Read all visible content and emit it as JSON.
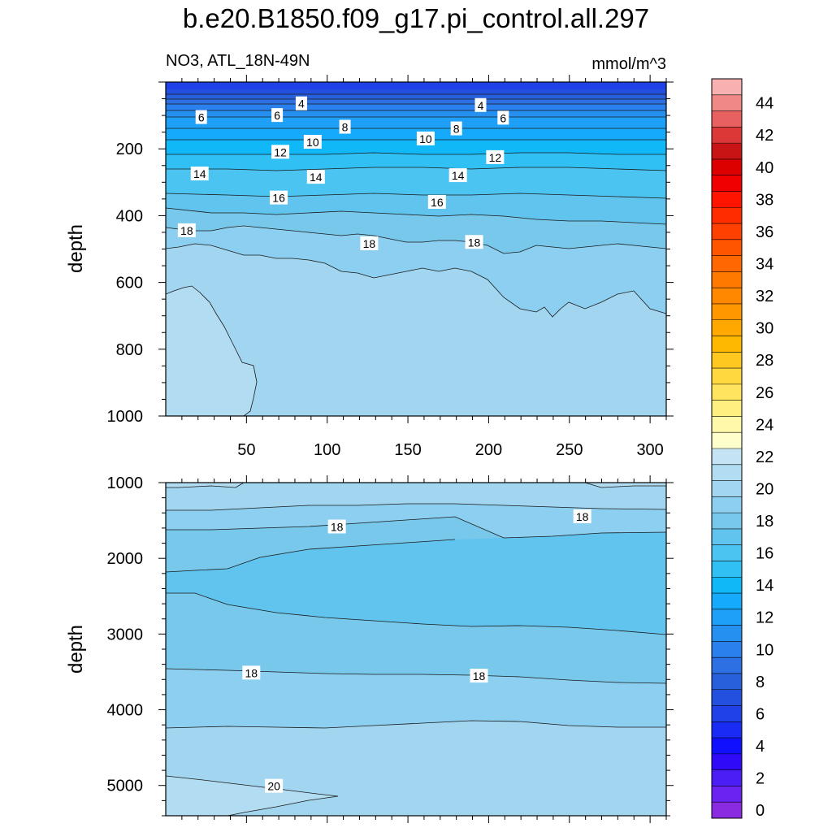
{
  "chart_data": {
    "type": "contour",
    "title": "b.e20.B1850.f09_g17.pi_control.all.297",
    "variable_label": "NO3, ATL_18N-49N",
    "units": "mmol/m^3",
    "panels": [
      {
        "name": "upper",
        "ylabel": "depth",
        "xlim": [
          0,
          310
        ],
        "ylim": [
          0,
          1000
        ],
        "x_ticks": [
          "50",
          "100",
          "150",
          "200",
          "250",
          "300"
        ],
        "y_ticks": [
          "200",
          "400",
          "600",
          "800",
          "1000"
        ],
        "contour_labels": [
          {
            "text": "4",
            "x": 84,
            "y": 65
          },
          {
            "text": "4",
            "x": 195,
            "y": 70
          },
          {
            "text": "6",
            "x": 22,
            "y": 106
          },
          {
            "text": "6",
            "x": 69,
            "y": 100
          },
          {
            "text": "6",
            "x": 209,
            "y": 108
          },
          {
            "text": "8",
            "x": 111,
            "y": 135
          },
          {
            "text": "8",
            "x": 180,
            "y": 140
          },
          {
            "text": "10",
            "x": 91,
            "y": 180
          },
          {
            "text": "10",
            "x": 161,
            "y": 170
          },
          {
            "text": "12",
            "x": 71,
            "y": 210
          },
          {
            "text": "12",
            "x": 204,
            "y": 226
          },
          {
            "text": "14",
            "x": 21,
            "y": 275
          },
          {
            "text": "14",
            "x": 93,
            "y": 285
          },
          {
            "text": "14",
            "x": 181,
            "y": 280
          },
          {
            "text": "16",
            "x": 70,
            "y": 347
          },
          {
            "text": "16",
            "x": 168,
            "y": 360
          },
          {
            "text": "18",
            "x": 13,
            "y": 445
          },
          {
            "text": "18",
            "x": 126,
            "y": 484
          },
          {
            "text": "18",
            "x": 191,
            "y": 480
          }
        ]
      },
      {
        "name": "lower",
        "ylabel": "depth",
        "xlim": [
          0,
          310
        ],
        "ylim": [
          1000,
          5400
        ],
        "y_ticks": [
          "1000",
          "2000",
          "3000",
          "4000",
          "5000"
        ],
        "contour_labels": [
          {
            "text": "18",
            "x": 106,
            "y": 1585
          },
          {
            "text": "18",
            "x": 258,
            "y": 1450
          },
          {
            "text": "18",
            "x": 53,
            "y": 3515
          },
          {
            "text": "18",
            "x": 194,
            "y": 3555
          },
          {
            "text": "20",
            "x": 67,
            "y": 5010
          }
        ]
      }
    ],
    "colorbar": {
      "tick_labels": [
        "0",
        "2",
        "4",
        "6",
        "8",
        "10",
        "12",
        "14",
        "16",
        "18",
        "20",
        "22",
        "24",
        "26",
        "28",
        "30",
        "32",
        "34",
        "36",
        "38",
        "40",
        "42",
        "44"
      ],
      "colors": [
        "#8a2be2",
        "#6a23f0",
        "#4b1ef6",
        "#2f0af8",
        "#1010ff",
        "#1a2cf4",
        "#2040e8",
        "#2450e0",
        "#2860dc",
        "#2c70e4",
        "#2a80ec",
        "#2690f0",
        "#1ea0f8",
        "#16aafc",
        "#10b8f8",
        "#30c0f4",
        "#4cc4f2",
        "#60c4ee",
        "#78c8ec",
        "#8ccff0",
        "#a2d6f0",
        "#b2dcf2",
        "#c4e4f4",
        "#ffffcc",
        "#fff8a8",
        "#ffee80",
        "#ffe460",
        "#ffd840",
        "#ffc820",
        "#ffb800",
        "#ffa800",
        "#ff9800",
        "#ff8800",
        "#ff7800",
        "#ff6800",
        "#ff5400",
        "#ff4000",
        "#ff2c00",
        "#ff1400",
        "#f00000",
        "#dc0000",
        "#c81414",
        "#dc3838",
        "#e86060",
        "#f08888",
        "#f8b0b0"
      ]
    }
  }
}
